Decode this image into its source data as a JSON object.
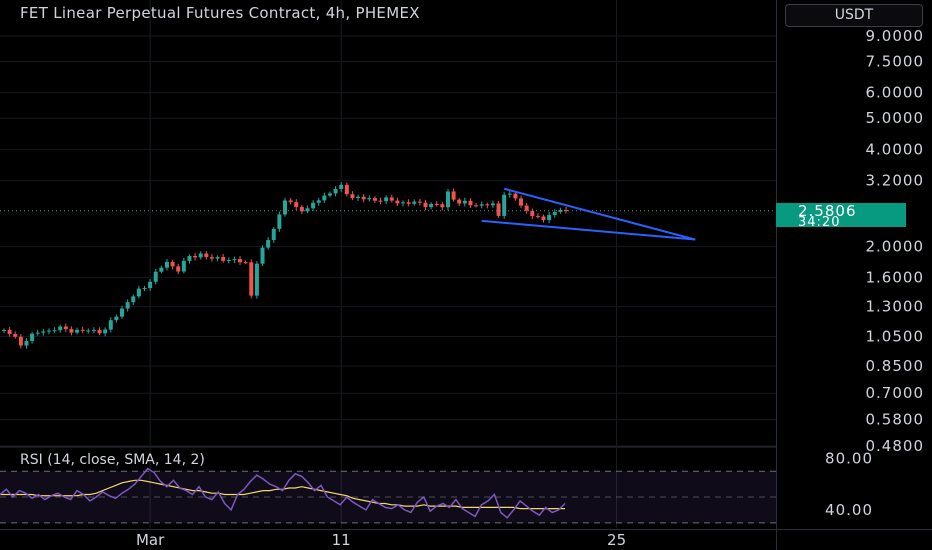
{
  "title": "FET Linear Perpetual Futures Contract, 4h, PHEMEX",
  "currency_button": "USDT",
  "current_price": "2.5806",
  "countdown": "34:20",
  "rsi_title": "RSI (14, close, SMA, 14, 2)",
  "colors": {
    "up": "#26a69a",
    "down": "#ef5350",
    "trendline": "#2962ff",
    "rsi_line": "#7e57c2",
    "rsi_sma": "#f5d76e",
    "price_badge": "#089981"
  },
  "chart_data": [
    {
      "type": "candlestick",
      "title": "FET Linear Perpetual Futures Contract, 4h, PHEMEX",
      "y_scale": "log",
      "y_ticks": [
        "9.0000",
        "7.5000",
        "6.0000",
        "5.0000",
        "4.0000",
        "3.2000",
        "2.0000",
        "1.6000",
        "1.3000",
        "1.0500",
        "0.8500",
        "0.7000",
        "0.5800",
        "0.4800"
      ],
      "x_ticks": [
        "Mar",
        "11",
        "25"
      ],
      "x_tick_positions": [
        26,
        60,
        109
      ],
      "ylim": [
        0.48,
        9.0
      ],
      "candles_summary": "approx. 105 four-hour candles, rising from ~1.0 to ~3.0 then consolidating near 2.58",
      "close_path": [
        [
          0,
          1.1
        ],
        [
          3,
          1.0
        ],
        [
          6,
          1.08
        ],
        [
          9,
          1.11
        ],
        [
          12,
          1.1
        ],
        [
          15,
          1.09
        ],
        [
          18,
          1.1
        ],
        [
          20,
          1.22
        ],
        [
          22,
          1.35
        ],
        [
          25,
          1.5
        ],
        [
          27,
          1.65
        ],
        [
          29,
          1.78
        ],
        [
          31,
          1.7
        ],
        [
          33,
          1.85
        ],
        [
          35,
          1.9
        ],
        [
          37,
          1.82
        ],
        [
          39,
          1.84
        ],
        [
          41,
          1.8
        ],
        [
          43,
          1.78
        ],
        [
          44,
          1.42
        ],
        [
          45,
          1.78
        ],
        [
          47,
          2.1
        ],
        [
          49,
          2.5
        ],
        [
          50,
          2.78
        ],
        [
          52,
          2.65
        ],
        [
          54,
          2.6
        ],
        [
          56,
          2.8
        ],
        [
          58,
          2.95
        ],
        [
          60,
          3.05
        ],
        [
          62,
          2.85
        ],
        [
          64,
          2.8
        ],
        [
          67,
          2.8
        ],
        [
          70,
          2.75
        ],
        [
          73,
          2.72
        ],
        [
          76,
          2.7
        ],
        [
          78,
          2.65
        ],
        [
          79,
          2.95
        ],
        [
          81,
          2.72
        ],
        [
          84,
          2.7
        ],
        [
          87,
          2.68
        ],
        [
          88,
          2.5
        ],
        [
          89,
          2.95
        ],
        [
          91,
          2.8
        ],
        [
          93,
          2.58
        ],
        [
          95,
          2.45
        ],
        [
          96,
          2.38
        ],
        [
          97,
          2.55
        ],
        [
          99,
          2.58
        ],
        [
          100,
          2.58
        ]
      ],
      "trendlines": [
        {
          "from": [
            89,
            3.02
          ],
          "to": [
            123,
            2.1
          ]
        },
        {
          "from": [
            85,
            2.4
          ],
          "to": [
            123,
            2.1
          ]
        }
      ],
      "last_price": 2.5806
    },
    {
      "type": "line",
      "title": "RSI (14, close, SMA, 14, 2)",
      "y_ticks": [
        "80.00",
        "40.00"
      ],
      "ylim": [
        26,
        88
      ],
      "bands": [
        70,
        50,
        30
      ],
      "series": [
        {
          "name": "RSI",
          "values": [
            52,
            56,
            50,
            55,
            53,
            49,
            52,
            48,
            51,
            53,
            50,
            48,
            55,
            52,
            47,
            50,
            54,
            51,
            49,
            53,
            56,
            60,
            66,
            72,
            69,
            62,
            58,
            63,
            57,
            55,
            52,
            58,
            50,
            48,
            54,
            45,
            40,
            52,
            56,
            62,
            67,
            64,
            60,
            58,
            55,
            63,
            68,
            66,
            61,
            55,
            59,
            50,
            47,
            44,
            50,
            46,
            43,
            40,
            48,
            45,
            42,
            41,
            44,
            40,
            38,
            46,
            50,
            39,
            43,
            45,
            42,
            48,
            41,
            38,
            35,
            44,
            47,
            52,
            38,
            34,
            40,
            47,
            43,
            39,
            36,
            42,
            38,
            40,
            45
          ]
        },
        {
          "name": "RSI-based MA",
          "values": [
            52,
            52,
            52,
            52,
            52,
            52,
            51,
            51,
            51,
            51,
            51,
            51,
            51,
            52,
            52,
            53,
            55,
            57,
            59,
            61,
            62,
            63,
            63,
            62,
            61,
            60,
            59,
            58,
            57,
            56,
            55,
            55,
            54,
            53,
            53,
            52,
            52,
            52,
            52,
            53,
            54,
            55,
            55,
            56,
            56,
            57,
            57,
            58,
            57,
            56,
            55,
            54,
            53,
            52,
            51,
            49,
            48,
            47,
            46,
            45,
            45,
            44,
            44,
            43,
            43,
            43,
            44,
            43,
            43,
            43,
            43,
            43,
            42,
            42,
            42,
            42,
            42,
            42,
            42,
            42,
            42,
            41,
            41,
            41,
            41,
            41,
            41,
            41,
            41
          ]
        }
      ]
    }
  ]
}
